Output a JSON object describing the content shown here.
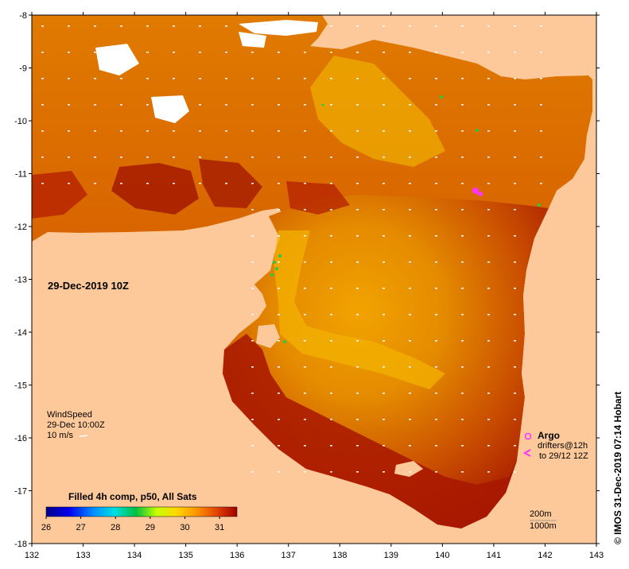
{
  "map": {
    "x_ticks": [
      "132",
      "133",
      "134",
      "135",
      "136",
      "137",
      "138",
      "139",
      "140",
      "141",
      "142",
      "143"
    ],
    "y_ticks": [
      "-8",
      "-9",
      "-10",
      "-11",
      "-12",
      "-13",
      "-14",
      "-15",
      "-16",
      "-17",
      "-18"
    ],
    "date_label": "29-Dec-2019 10Z",
    "colors": {
      "land": "#fdc99b",
      "sst_warm": "#f4a000",
      "sst_hot": "#a31400",
      "sst_mid": "#d85b00",
      "wind_arrow": "#ffffff",
      "argo": "#ff33ff",
      "drifter_green": "#22cc44"
    }
  },
  "wind": {
    "title": "WindSpeed",
    "time": "29-Dec 10:00Z",
    "scale": "10 m/s"
  },
  "colorbar": {
    "title": "Filled 4h comp, p50, All Sats",
    "ticks": [
      "26",
      "27",
      "28",
      "29",
      "30",
      "31"
    ],
    "range": [
      26,
      31.5
    ]
  },
  "legend": {
    "argo_label": "Argo",
    "drifters_line1": "drifters@12h",
    "drifters_line2": "to 29/12 12Z",
    "depth_200": "200m",
    "depth_1000": "1000m"
  },
  "stamp": "© IMOS 31-Dec-2019 07:14 Hobart"
}
